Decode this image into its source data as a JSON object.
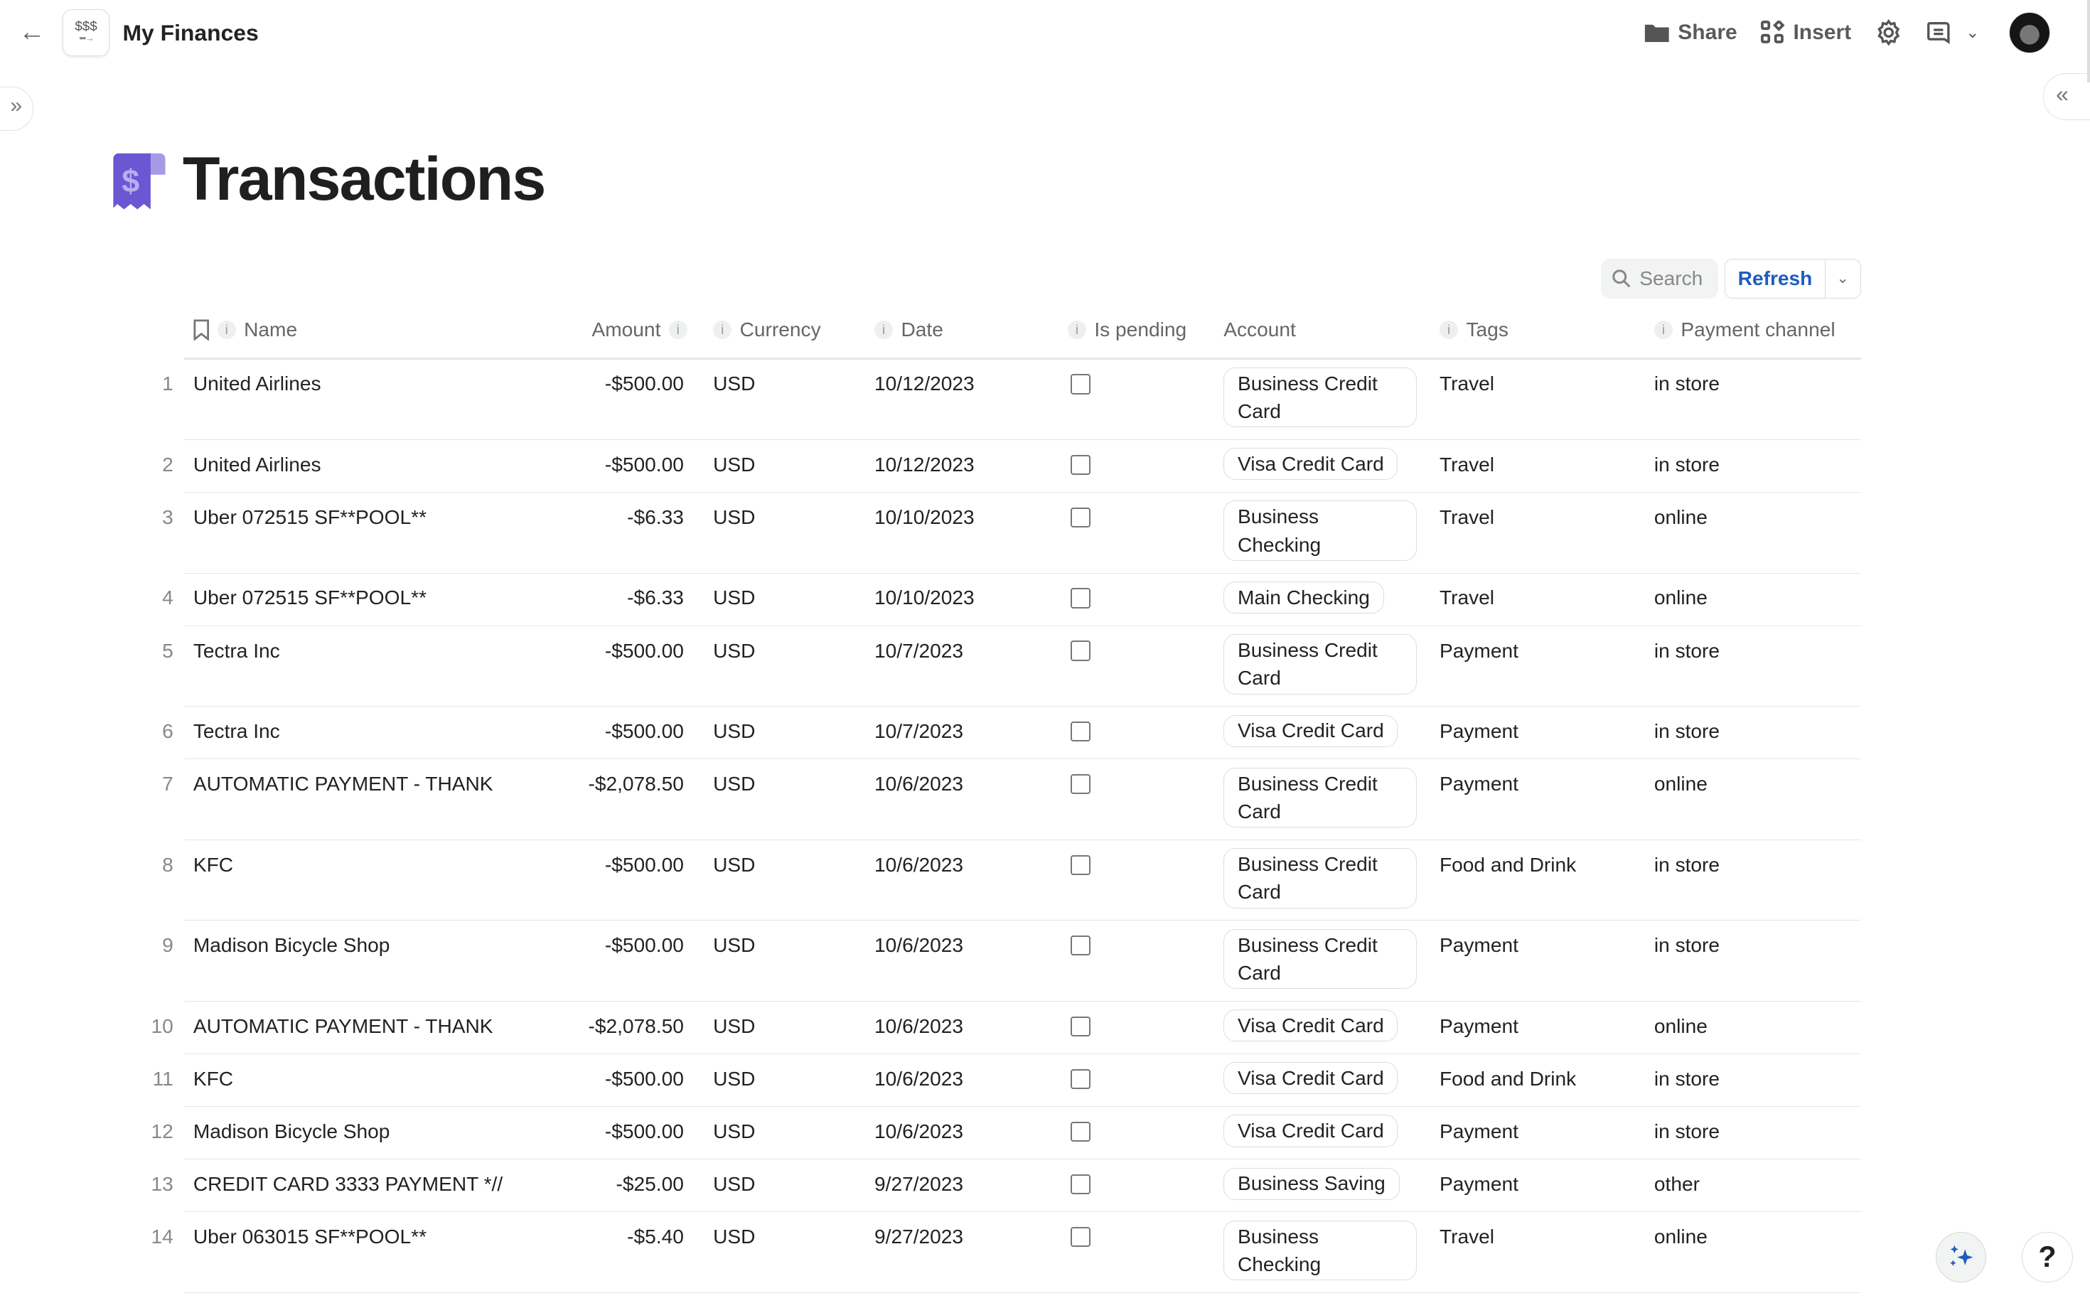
{
  "header": {
    "doc_title": "My Finances",
    "doc_icon_text": "$$$",
    "share_label": "Share",
    "insert_label": "Insert"
  },
  "page": {
    "title": "Transactions",
    "icon_color": "#6b57d2"
  },
  "toolbar": {
    "search_label": "Search",
    "refresh_label": "Refresh"
  },
  "table": {
    "columns": {
      "name": "Name",
      "amount": "Amount",
      "currency": "Currency",
      "date": "Date",
      "is_pending": "Is pending",
      "account": "Account",
      "tags": "Tags",
      "payment_channel": "Payment channel"
    },
    "rows": [
      {
        "num": "1",
        "name": "United Airlines",
        "amount": "-$500.00",
        "currency": "USD",
        "date": "10/12/2023",
        "pending": false,
        "account": "Business Credit Card",
        "tags": "Travel",
        "channel": "in store"
      },
      {
        "num": "2",
        "name": "United Airlines",
        "amount": "-$500.00",
        "currency": "USD",
        "date": "10/12/2023",
        "pending": false,
        "account": "Visa Credit Card",
        "tags": "Travel",
        "channel": "in store"
      },
      {
        "num": "3",
        "name": "Uber 072515 SF**POOL**",
        "amount": "-$6.33",
        "currency": "USD",
        "date": "10/10/2023",
        "pending": false,
        "account": "Business Checking",
        "tags": "Travel",
        "channel": "online"
      },
      {
        "num": "4",
        "name": "Uber 072515 SF**POOL**",
        "amount": "-$6.33",
        "currency": "USD",
        "date": "10/10/2023",
        "pending": false,
        "account": "Main Checking",
        "tags": "Travel",
        "channel": "online"
      },
      {
        "num": "5",
        "name": "Tectra Inc",
        "amount": "-$500.00",
        "currency": "USD",
        "date": "10/7/2023",
        "pending": false,
        "account": "Business Credit Card",
        "tags": "Payment",
        "channel": "in store"
      },
      {
        "num": "6",
        "name": "Tectra Inc",
        "amount": "-$500.00",
        "currency": "USD",
        "date": "10/7/2023",
        "pending": false,
        "account": "Visa Credit Card",
        "tags": "Payment",
        "channel": "in store"
      },
      {
        "num": "7",
        "name": "AUTOMATIC PAYMENT - THANK",
        "amount": "-$2,078.50",
        "currency": "USD",
        "date": "10/6/2023",
        "pending": false,
        "account": "Business Credit Card",
        "tags": "Payment",
        "channel": "online"
      },
      {
        "num": "8",
        "name": "KFC",
        "amount": "-$500.00",
        "currency": "USD",
        "date": "10/6/2023",
        "pending": false,
        "account": "Business Credit Card",
        "tags": "Food and Drink",
        "channel": "in store"
      },
      {
        "num": "9",
        "name": "Madison Bicycle Shop",
        "amount": "-$500.00",
        "currency": "USD",
        "date": "10/6/2023",
        "pending": false,
        "account": "Business Credit Card",
        "tags": "Payment",
        "channel": "in store"
      },
      {
        "num": "10",
        "name": "AUTOMATIC PAYMENT - THANK",
        "amount": "-$2,078.50",
        "currency": "USD",
        "date": "10/6/2023",
        "pending": false,
        "account": "Visa Credit Card",
        "tags": "Payment",
        "channel": "online"
      },
      {
        "num": "11",
        "name": "KFC",
        "amount": "-$500.00",
        "currency": "USD",
        "date": "10/6/2023",
        "pending": false,
        "account": "Visa Credit Card",
        "tags": "Food and Drink",
        "channel": "in store"
      },
      {
        "num": "12",
        "name": "Madison Bicycle Shop",
        "amount": "-$500.00",
        "currency": "USD",
        "date": "10/6/2023",
        "pending": false,
        "account": "Visa Credit Card",
        "tags": "Payment",
        "channel": "in store"
      },
      {
        "num": "13",
        "name": "CREDIT CARD 3333 PAYMENT *//",
        "amount": "-$25.00",
        "currency": "USD",
        "date": "9/27/2023",
        "pending": false,
        "account": "Business Saving",
        "tags": "Payment",
        "channel": "other"
      },
      {
        "num": "14",
        "name": "Uber 063015 SF**POOL**",
        "amount": "-$5.40",
        "currency": "USD",
        "date": "9/27/2023",
        "pending": false,
        "account": "Business Checking",
        "tags": "Travel",
        "channel": "online"
      }
    ]
  },
  "floating": {
    "help_label": "?",
    "ai_accent": "#1d5cbf"
  }
}
